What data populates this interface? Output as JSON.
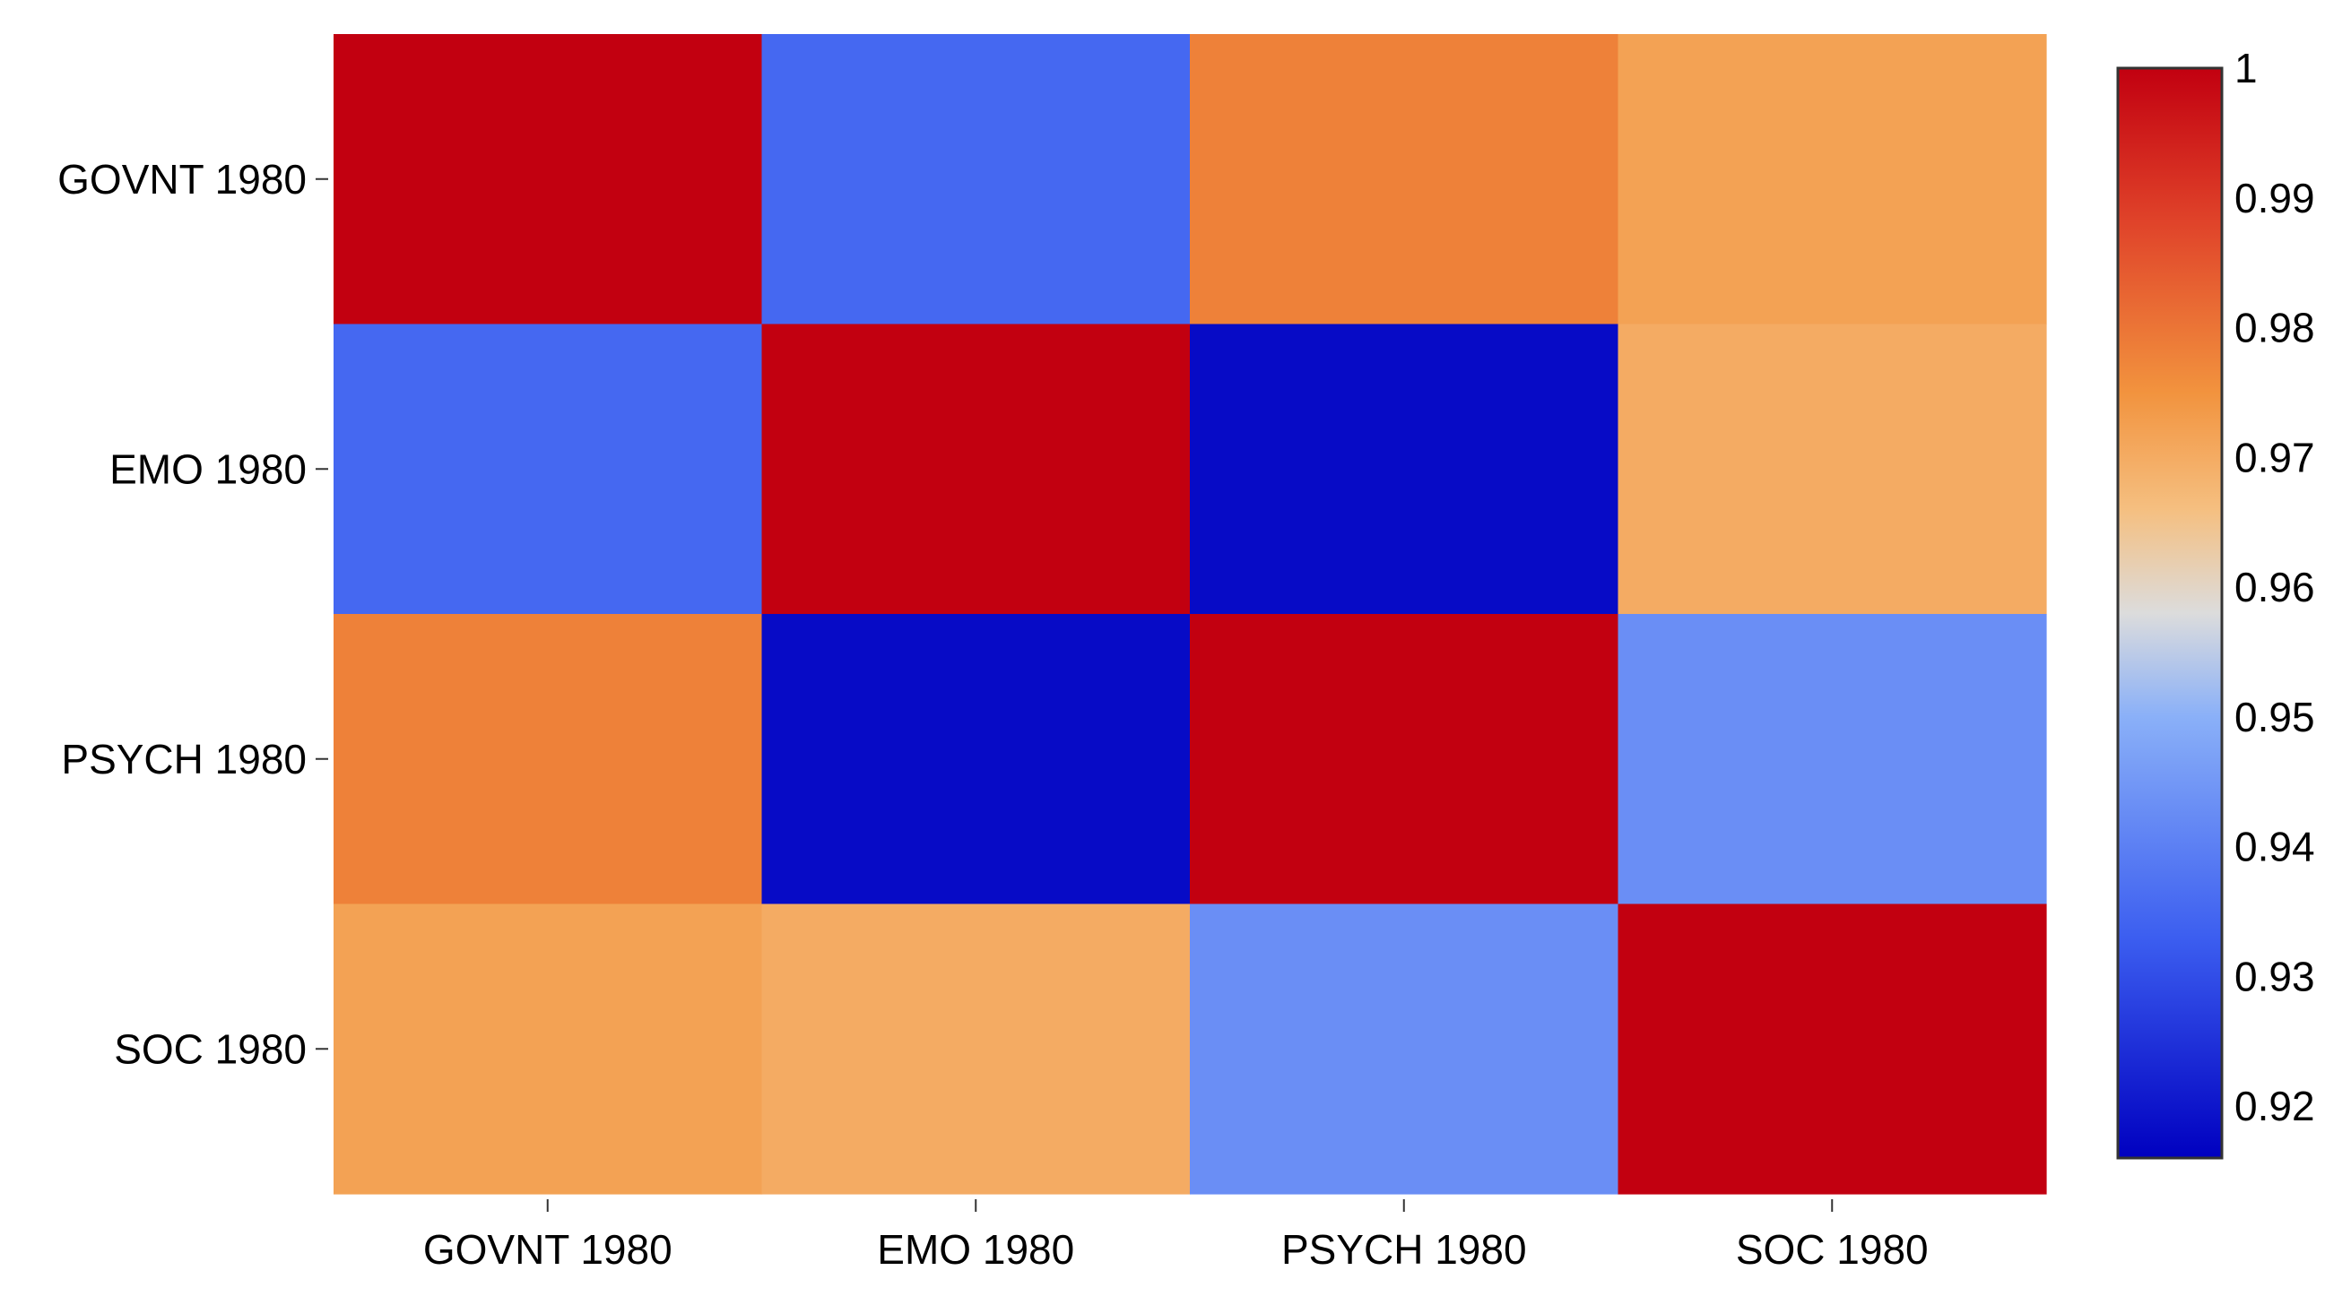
{
  "chart_data": {
    "type": "heatmap",
    "title": "",
    "xlabel": "",
    "ylabel": "",
    "x_categories": [
      "GOVNT 1980",
      "EMO 1980",
      "PSYCH 1980",
      "SOC 1980"
    ],
    "y_categories": [
      "GOVNT 1980",
      "EMO 1980",
      "PSYCH 1980",
      "SOC 1980"
    ],
    "values": [
      [
        1.0,
        0.935,
        0.978,
        0.972
      ],
      [
        0.935,
        1.0,
        0.918,
        0.97
      ],
      [
        0.978,
        0.918,
        1.0,
        0.943
      ],
      [
        0.972,
        0.97,
        0.943,
        1.0
      ]
    ],
    "colorbar": {
      "range": [
        0.916,
        1.0
      ],
      "ticks": [
        "1",
        "0.99",
        "0.98",
        "0.97",
        "0.96",
        "0.95",
        "0.94",
        "0.93",
        "0.92"
      ],
      "tick_values": [
        1.0,
        0.99,
        0.98,
        0.97,
        0.96,
        0.95,
        0.94,
        0.93,
        0.92
      ],
      "position": "right"
    },
    "colormap": [
      {
        "v": 0.916,
        "color": "#0000c0"
      },
      {
        "v": 0.933,
        "color": "#3c5ef0"
      },
      {
        "v": 0.95,
        "color": "#8ab0f8"
      },
      {
        "v": 0.958,
        "color": "#dcdcdc"
      },
      {
        "v": 0.966,
        "color": "#f5bf80"
      },
      {
        "v": 0.975,
        "color": "#f2933e"
      },
      {
        "v": 0.988,
        "color": "#e0442a"
      },
      {
        "v": 1.0,
        "color": "#c20010"
      }
    ],
    "grid": false
  }
}
